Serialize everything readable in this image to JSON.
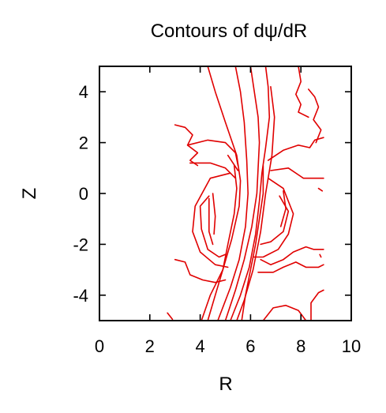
{
  "chart_data": {
    "type": "line",
    "title": "Contours of dψ/dR",
    "xlabel": "R",
    "ylabel": "Z",
    "xlim": [
      0,
      10
    ],
    "ylim": [
      -5,
      5
    ],
    "xticks": [
      "0",
      "2",
      "4",
      "6",
      "8",
      "10"
    ],
    "yticks": [
      "4",
      "2",
      "0",
      "-2",
      "-4"
    ],
    "xtick_values": [
      0,
      2,
      4,
      6,
      8,
      10
    ],
    "ytick_values": [
      4,
      2,
      0,
      -2,
      -4
    ],
    "grid": false,
    "legend": "none",
    "line_color": "#e00000",
    "contours": [
      {
        "points": [
          [
            4.3,
            5.0
          ],
          [
            4.6,
            4.0
          ],
          [
            5.0,
            2.8
          ],
          [
            5.45,
            1.5
          ],
          [
            5.6,
            0.5
          ],
          [
            5.55,
            -0.5
          ],
          [
            5.25,
            -1.8
          ],
          [
            4.9,
            -3.0
          ],
          [
            4.4,
            -4.0
          ],
          [
            4.05,
            -5.0
          ]
        ]
      },
      {
        "points": [
          [
            5.4,
            5.0
          ],
          [
            5.6,
            4.0
          ],
          [
            5.75,
            2.8
          ],
          [
            5.85,
            1.3
          ],
          [
            5.9,
            0.0
          ],
          [
            5.8,
            -1.3
          ],
          [
            5.55,
            -2.6
          ],
          [
            5.2,
            -3.7
          ],
          [
            4.7,
            -5.0
          ]
        ]
      },
      {
        "points": [
          [
            6.0,
            5.0
          ],
          [
            6.15,
            4.0
          ],
          [
            6.3,
            3.0
          ],
          [
            6.35,
            2.0
          ],
          [
            6.3,
            1.0
          ],
          [
            6.25,
            0.0
          ],
          [
            6.05,
            -1.3
          ],
          [
            5.75,
            -2.6
          ],
          [
            5.4,
            -3.8
          ],
          [
            5.0,
            -5.0
          ]
        ]
      },
      {
        "points": [
          [
            6.6,
            5.0
          ],
          [
            6.7,
            4.2
          ],
          [
            6.75,
            3.0
          ],
          [
            6.6,
            1.8
          ],
          [
            6.45,
            0.8
          ],
          [
            6.35,
            -0.3
          ],
          [
            6.2,
            -1.6
          ],
          [
            5.95,
            -2.9
          ],
          [
            5.6,
            -4.0
          ],
          [
            5.2,
            -5.0
          ]
        ]
      },
      {
        "points": [
          [
            6.8,
            4.2
          ],
          [
            6.95,
            3.0
          ],
          [
            6.85,
            1.5
          ],
          [
            6.6,
            0.0
          ],
          [
            6.4,
            -1.5
          ],
          [
            6.1,
            -3.0
          ],
          [
            5.75,
            -4.2
          ],
          [
            5.45,
            -5.0
          ]
        ]
      },
      {
        "points": [
          [
            5.35,
            1.1
          ],
          [
            5.45,
            0.2
          ],
          [
            5.35,
            -0.8
          ],
          [
            5.1,
            -2.0
          ],
          [
            4.9,
            -3.0
          ],
          [
            4.6,
            -4.0
          ],
          [
            4.3,
            -5.0
          ]
        ]
      },
      {
        "points": [
          [
            6.5,
            1.1
          ],
          [
            6.5,
            0.0
          ],
          [
            6.35,
            -1.0
          ],
          [
            6.2,
            -2.0
          ],
          [
            6.0,
            -3.0
          ],
          [
            5.8,
            -4.0
          ],
          [
            5.65,
            -5.0
          ]
        ]
      },
      {
        "points": [
          [
            5.1,
            1.5
          ],
          [
            5.5,
            0.9
          ]
        ]
      },
      {
        "points": [
          [
            3.0,
            2.7
          ],
          [
            3.4,
            2.6
          ],
          [
            3.7,
            2.3
          ],
          [
            3.5,
            1.9
          ],
          [
            3.9,
            1.6
          ],
          [
            3.6,
            1.3
          ],
          [
            3.9,
            1.1
          ]
        ]
      },
      {
        "points": [
          [
            3.5,
            1.9
          ],
          [
            4.3,
            2.1
          ],
          [
            5.0,
            2.0
          ],
          [
            5.4,
            1.6
          ],
          [
            5.5,
            1.1
          ]
        ]
      },
      {
        "points": [
          [
            3.6,
            1.2
          ],
          [
            4.4,
            1.2
          ],
          [
            5.0,
            1.0
          ],
          [
            5.4,
            0.6
          ]
        ]
      },
      {
        "points": [
          [
            7.9,
            5.0
          ],
          [
            8.0,
            4.4
          ],
          [
            7.8,
            3.9
          ],
          [
            8.0,
            3.5
          ],
          [
            7.9,
            3.2
          ],
          [
            8.3,
            3.0
          ]
        ]
      },
      {
        "points": [
          [
            8.3,
            4.1
          ],
          [
            8.55,
            3.8
          ],
          [
            8.7,
            3.4
          ],
          [
            8.5,
            2.9
          ],
          [
            8.8,
            2.5
          ],
          [
            8.6,
            2.0
          ]
        ]
      },
      {
        "points": [
          [
            6.7,
            1.3
          ],
          [
            7.3,
            1.7
          ],
          [
            7.9,
            1.9
          ],
          [
            8.35,
            1.8
          ],
          [
            8.55,
            2.1
          ],
          [
            8.9,
            2.2
          ]
        ]
      },
      {
        "points": [
          [
            6.8,
            0.9
          ],
          [
            7.5,
            1.0
          ],
          [
            8.1,
            0.6
          ],
          [
            8.9,
            0.6
          ]
        ]
      },
      {
        "points": [
          [
            5.2,
            0.8
          ],
          [
            4.4,
            0.6
          ],
          [
            3.8,
            -0.5
          ],
          [
            3.7,
            -1.5
          ],
          [
            4.0,
            -2.3
          ],
          [
            4.6,
            -2.8
          ],
          [
            5.1,
            -2.9
          ]
        ]
      },
      {
        "points": [
          [
            4.35,
            -0.1
          ],
          [
            4.0,
            -0.5
          ],
          [
            4.05,
            -1.4
          ],
          [
            4.3,
            -2.2
          ],
          [
            4.75,
            -2.5
          ],
          [
            5.0,
            -2.4
          ]
        ]
      },
      {
        "points": [
          [
            4.35,
            -0.2
          ],
          [
            4.35,
            -1.5
          ],
          [
            4.5,
            -2.0
          ]
        ]
      },
      {
        "points": [
          [
            4.5,
            0.0
          ],
          [
            4.6,
            -0.9
          ],
          [
            4.55,
            -1.6
          ]
        ]
      },
      {
        "points": [
          [
            3.0,
            -2.6
          ],
          [
            3.4,
            -2.7
          ],
          [
            3.6,
            -3.2
          ],
          [
            4.1,
            -3.4
          ],
          [
            4.6,
            -3.5
          ],
          [
            5.0,
            -3.4
          ]
        ]
      },
      {
        "points": [
          [
            6.7,
            0.6
          ],
          [
            7.3,
            0.2
          ],
          [
            7.7,
            -0.8
          ],
          [
            7.5,
            -1.6
          ],
          [
            7.1,
            -2.2
          ],
          [
            6.5,
            -2.5
          ],
          [
            6.1,
            -2.5
          ]
        ]
      },
      {
        "points": [
          [
            7.15,
            -0.1
          ],
          [
            7.5,
            -0.7
          ],
          [
            7.3,
            -1.5
          ],
          [
            6.8,
            -1.9
          ],
          [
            6.4,
            -2.0
          ]
        ]
      },
      {
        "points": [
          [
            7.3,
            0.1
          ],
          [
            7.4,
            -0.6
          ],
          [
            7.2,
            -1.3
          ]
        ]
      },
      {
        "points": [
          [
            6.4,
            -2.6
          ],
          [
            6.8,
            -2.8
          ],
          [
            7.3,
            -2.6
          ],
          [
            7.7,
            -2.3
          ],
          [
            8.2,
            -2.1
          ],
          [
            8.5,
            -2.2
          ],
          [
            8.9,
            -2.2
          ]
        ]
      },
      {
        "points": [
          [
            6.3,
            -3.1
          ],
          [
            6.9,
            -3.1
          ],
          [
            7.3,
            -2.9
          ],
          [
            7.8,
            -2.7
          ],
          [
            8.2,
            -2.9
          ],
          [
            8.7,
            -2.9
          ],
          [
            8.9,
            -2.8
          ]
        ]
      },
      {
        "points": [
          [
            6.5,
            -5.0
          ],
          [
            6.9,
            -4.5
          ],
          [
            7.4,
            -4.4
          ],
          [
            7.9,
            -4.6
          ],
          [
            8.2,
            -5.0
          ]
        ]
      },
      {
        "points": [
          [
            8.4,
            -5.0
          ],
          [
            8.4,
            -4.3
          ],
          [
            8.7,
            -3.9
          ],
          [
            8.9,
            -3.8
          ]
        ]
      },
      {
        "points": [
          [
            2.7,
            -4.7
          ],
          [
            2.9,
            -4.95
          ]
        ]
      },
      {
        "points": [
          [
            8.75,
            -2.4
          ],
          [
            8.8,
            -2.5
          ]
        ]
      },
      {
        "points": [
          [
            8.7,
            0.2
          ],
          [
            8.85,
            0.1
          ]
        ]
      }
    ]
  }
}
